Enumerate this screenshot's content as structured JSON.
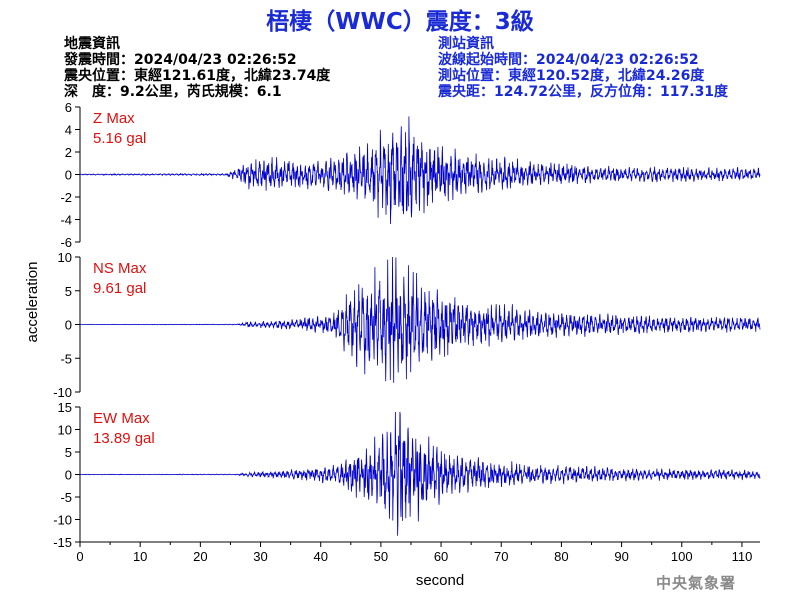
{
  "header": {
    "title": "梧棲（WWC）震度：3級"
  },
  "event_info": {
    "heading": "地震資訊",
    "time": "發震時間：2024/04/23 02:26:52",
    "location": "震央位置：東經121.61度，北緯23.74度",
    "depth_magnitude": "深　度：9.2公里，芮氏規模：6.1"
  },
  "station_info": {
    "heading": "測站資訊",
    "start_time": "波線起始時間：2024/04/23 02:26:52",
    "location": "測站位置：東經120.52度，北緯24.26度",
    "distance": "震央距：124.72公里，反方位角：117.31度"
  },
  "footer": {
    "agency": "中央氣象署"
  },
  "colors": {
    "title": "#1a2bd6",
    "trace": "#0000cc",
    "max_label": "#e01010",
    "axis": "#000000"
  },
  "chart_data": {
    "type": "line",
    "xlabel": "second",
    "ylabel": "acceleration",
    "x_range": [
      0,
      113
    ],
    "x_ticks": [
      "0",
      "10",
      "20",
      "30",
      "40",
      "50",
      "60",
      "70",
      "80",
      "90",
      "100",
      "110"
    ],
    "grid": false,
    "panels": [
      {
        "name": "Z",
        "max_title": "Z Max",
        "max_value": "5.16 gal",
        "peak": 5.16,
        "ylim": [
          -6,
          6
        ],
        "y_ticks": [
          "6",
          "4",
          "2",
          "0",
          "-2",
          "-4",
          "-6"
        ],
        "envelope": [
          [
            0,
            0.05
          ],
          [
            24,
            0.08
          ],
          [
            26,
            0.5
          ],
          [
            28,
            1.3
          ],
          [
            32,
            1.4
          ],
          [
            40,
            1.1
          ],
          [
            46,
            2.0
          ],
          [
            52,
            4.0
          ],
          [
            54,
            5.16
          ],
          [
            56,
            3.6
          ],
          [
            60,
            2.4
          ],
          [
            66,
            1.6
          ],
          [
            74,
            1.1
          ],
          [
            85,
            0.7
          ],
          [
            113,
            0.5
          ]
        ]
      },
      {
        "name": "NS",
        "max_title": "NS Max",
        "max_value": "9.61 gal",
        "peak": 9.61,
        "ylim": [
          -10,
          10
        ],
        "y_ticks": [
          "10",
          "5",
          "0",
          "-5",
          "-10"
        ],
        "envelope": [
          [
            0,
            0.02
          ],
          [
            26,
            0.05
          ],
          [
            28,
            0.4
          ],
          [
            36,
            0.7
          ],
          [
            42,
            1.5
          ],
          [
            46,
            5.5
          ],
          [
            50,
            8.5
          ],
          [
            52,
            9.61
          ],
          [
            54,
            8.5
          ],
          [
            57,
            6.0
          ],
          [
            60,
            4.5
          ],
          [
            66,
            3.2
          ],
          [
            72,
            2.5
          ],
          [
            80,
            1.7
          ],
          [
            95,
            1.2
          ],
          [
            113,
            1.0
          ]
        ]
      },
      {
        "name": "EW",
        "max_title": "EW Max",
        "max_value": "13.89 gal",
        "peak": 13.89,
        "ylim": [
          -15,
          15
        ],
        "y_ticks": [
          "15",
          "10",
          "5",
          "0",
          "-5",
          "-10",
          "-15"
        ],
        "envelope": [
          [
            0,
            0.05
          ],
          [
            26,
            0.08
          ],
          [
            28,
            0.5
          ],
          [
            36,
            1.0
          ],
          [
            42,
            2.0
          ],
          [
            46,
            5.0
          ],
          [
            50,
            8.0
          ],
          [
            53,
            13.89
          ],
          [
            55,
            10.0
          ],
          [
            58,
            7.0
          ],
          [
            62,
            4.0
          ],
          [
            70,
            2.6
          ],
          [
            80,
            1.8
          ],
          [
            95,
            1.2
          ],
          [
            113,
            0.9
          ]
        ]
      }
    ]
  }
}
